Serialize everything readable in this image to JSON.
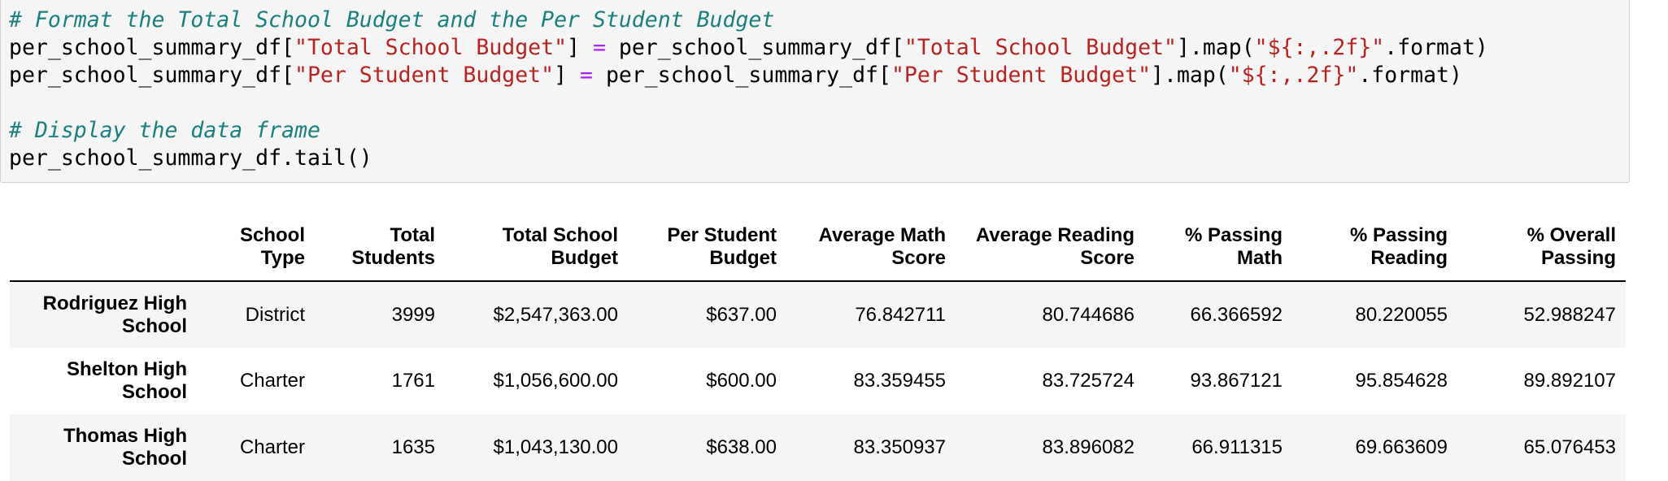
{
  "code_cell": {
    "comment1": "# Format the Total School Budget and the Per Student Budget",
    "line2": {
      "var_a": "per_school_summary_df[",
      "key": "\"Total School Budget\"",
      "close_a": "] ",
      "op": "=",
      "var_b": " per_school_summary_df[",
      "key_b": "\"Total School Budget\"",
      "mid": "].map(",
      "fmt": "\"${:,.2f}\"",
      "tail": ".format)"
    },
    "line3": {
      "var_a": "per_school_summary_df[",
      "key": "\"Per Student Budget\"",
      "close_a": "] ",
      "op": "=",
      "var_b": " per_school_summary_df[",
      "key_b": "\"Per Student Budget\"",
      "mid": "].map(",
      "fmt": "\"${:,.2f}\"",
      "tail": ".format)"
    },
    "comment2": "# Display the data frame",
    "line6": "per_school_summary_df.tail()"
  },
  "output_table": {
    "headers": {
      "school_type": [
        "School",
        "Type"
      ],
      "total_students": [
        "Total",
        "Students"
      ],
      "total_budget": [
        "Total School",
        "Budget"
      ],
      "per_student": [
        "Per Student",
        "Budget"
      ],
      "avg_math": [
        "Average Math",
        "Score"
      ],
      "avg_reading": [
        "Average Reading",
        "Score"
      ],
      "pass_math": [
        "% Passing",
        "Math"
      ],
      "pass_reading": [
        "% Passing",
        "Reading"
      ],
      "overall": [
        "% Overall",
        "Passing"
      ]
    },
    "rows": [
      {
        "school": [
          "Rodriguez High",
          "School"
        ],
        "type": "District",
        "students": "3999",
        "budget": "$2,547,363.00",
        "per_student": "$637.00",
        "math": "76.842711",
        "reading": "80.744686",
        "pass_math": "66.366592",
        "pass_reading": "80.220055",
        "overall": "52.988247"
      },
      {
        "school": [
          "Shelton High",
          "School"
        ],
        "type": "Charter",
        "students": "1761",
        "budget": "$1,056,600.00",
        "per_student": "$600.00",
        "math": "83.359455",
        "reading": "83.725724",
        "pass_math": "93.867121",
        "pass_reading": "95.854628",
        "overall": "89.892107"
      },
      {
        "school": [
          "Thomas High",
          "School"
        ],
        "type": "Charter",
        "students": "1635",
        "budget": "$1,043,130.00",
        "per_student": "$638.00",
        "math": "83.350937",
        "reading": "83.896082",
        "pass_math": "66.911315",
        "pass_reading": "69.663609",
        "overall": "65.076453"
      }
    ]
  }
}
